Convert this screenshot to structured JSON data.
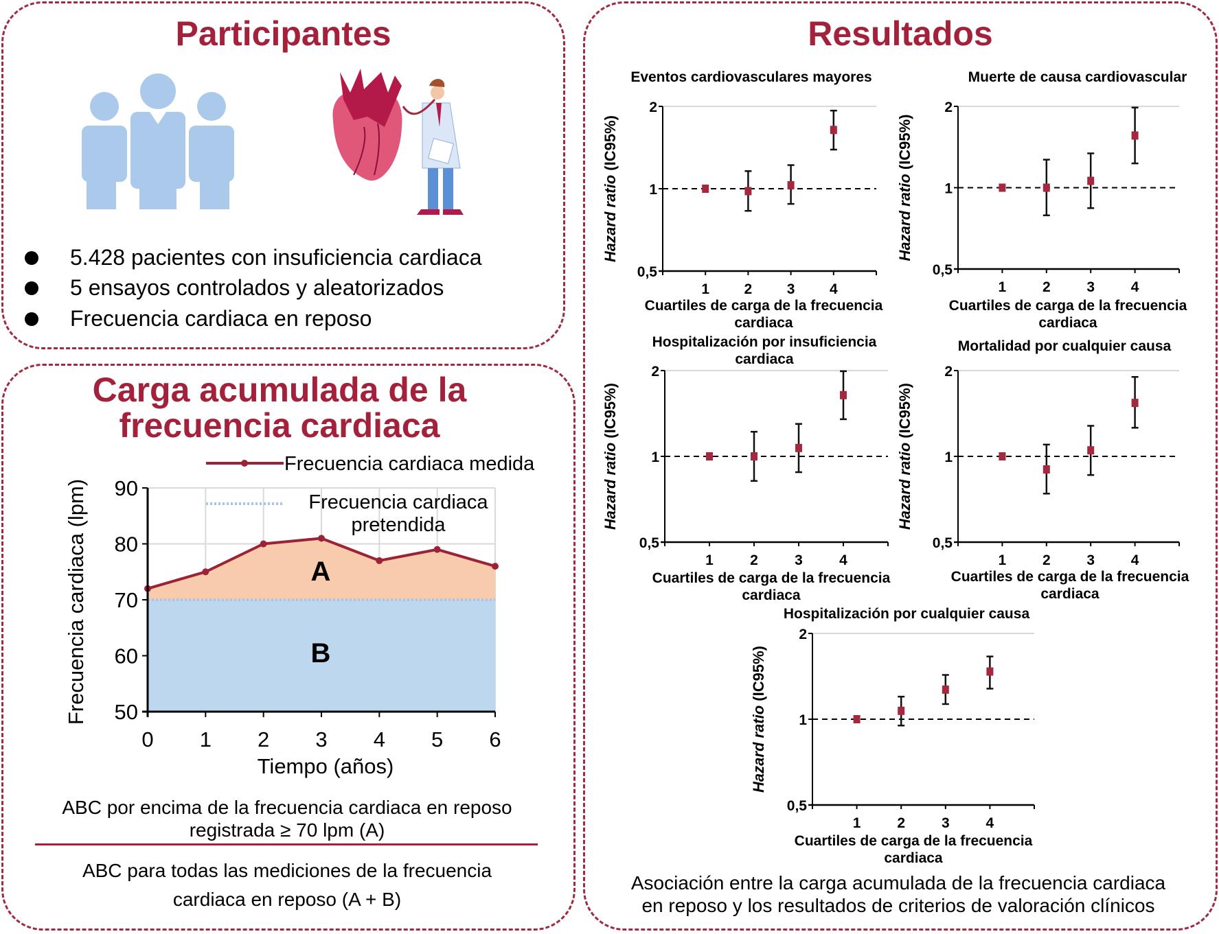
{
  "participants": {
    "title": "Participantes",
    "bullets": [
      "5.428 pacientes con insuficiencia cardiaca",
      "5 ensayos controlados y aleatorizados",
      "Frecuencia cardiaca en reposo"
    ],
    "icons": [
      "people-group-icon",
      "heart-doctor-illustration"
    ]
  },
  "burden": {
    "title": "Carga acumulada de la\nfrecuencia cardiaca",
    "note_a": "ABC por encima de la frecuencia cardiaca en reposo\nregistrada ≥ 70 lpm (A)",
    "note_ab": "ABC para todas las mediciones de la frecuencia\ncardiaca en reposo (A + B)"
  },
  "results": {
    "title": "Resultados",
    "caption": "Asociación entre la carga acumulada de la frecuencia cardiaca\nen reposo y los resultados de criterios de valoración clínicos"
  },
  "colors": {
    "accent": "#a3213a",
    "marker": "#a5283f",
    "area_a": "#f8cbad",
    "area_b": "#bdd7ee",
    "target_line": "#a9c4e8",
    "people": "#abc9ea"
  },
  "chart_data": [
    {
      "type": "area",
      "x": [
        0,
        1,
        2,
        3,
        4,
        5,
        6
      ],
      "series": [
        {
          "name": "Frecuencia cardiaca medida",
          "values": [
            72,
            75,
            80,
            81,
            77,
            79,
            76
          ]
        },
        {
          "name": "Frecuencia cardiaca pretendida",
          "values": [
            70,
            70,
            70,
            70,
            70,
            70,
            70
          ]
        }
      ],
      "legend_labels": [
        "Frecuencia cardiaca medida",
        "Frecuencia cardiaca\npretendida"
      ],
      "xlabel": "Tiempo (años)",
      "ylabel": "Frecuencia cardiaca (lpm)",
      "xlim": [
        0,
        6
      ],
      "ylim": [
        50,
        90
      ],
      "xticks": [
        "0",
        "1",
        "2",
        "3",
        "4",
        "5",
        "6"
      ],
      "yticks": [
        "50",
        "60",
        "70",
        "80",
        "90"
      ],
      "region_labels": [
        "A",
        "B"
      ],
      "grid": true,
      "legend": "top-right"
    },
    {
      "type": "scatter",
      "title": "Eventos cardiovasculares mayores",
      "categories": [
        "1",
        "2",
        "3",
        "4"
      ],
      "hr": [
        1.0,
        0.98,
        1.03,
        1.64
      ],
      "ci_low": [
        1.0,
        0.83,
        0.88,
        1.39
      ],
      "ci_high": [
        1.0,
        1.16,
        1.22,
        1.93
      ],
      "yscale": "log",
      "ylim": [
        0.5,
        2
      ],
      "reference_line": 1,
      "yticks": [
        0.5,
        1,
        2
      ],
      "ytick_labels": [
        "0,5",
        "1",
        "2"
      ],
      "xlabel": "Cuartiles de carga de la frecuencia\ncardiaca",
      "ylabel": [
        "Hazard ratio",
        " (IC95%)"
      ]
    },
    {
      "type": "scatter",
      "title": "Muerte de causa cardiovascular",
      "categories": [
        "1",
        "2",
        "3",
        "4"
      ],
      "hr": [
        1.0,
        1.0,
        1.06,
        1.56
      ],
      "ci_low": [
        1.0,
        0.79,
        0.84,
        1.23
      ],
      "ci_high": [
        1.0,
        1.27,
        1.34,
        1.98
      ],
      "yscale": "log",
      "ylim": [
        0.5,
        2
      ],
      "reference_line": 1,
      "yticks": [
        0.5,
        1,
        2
      ],
      "ytick_labels": [
        "0,5",
        "1",
        "2"
      ],
      "xlabel": "Cuartiles de carga de la frecuencia\ncardiaca",
      "ylabel": [
        "Hazard ratio",
        " (IC95%)"
      ]
    },
    {
      "type": "scatter",
      "title": "Hospitalización por insuficiencia\ncardiaca",
      "categories": [
        "1",
        "2",
        "3",
        "4"
      ],
      "hr": [
        1.0,
        1.0,
        1.07,
        1.64
      ],
      "ci_low": [
        1.0,
        0.82,
        0.88,
        1.35
      ],
      "ci_high": [
        1.0,
        1.22,
        1.3,
        1.99
      ],
      "yscale": "log",
      "ylim": [
        0.5,
        2
      ],
      "reference_line": 1,
      "yticks": [
        0.5,
        1,
        2
      ],
      "ytick_labels": [
        "0,5",
        "1",
        "2"
      ],
      "xlabel": "Cuartiles de carga de la frecuencia\ncardiaca",
      "ylabel": [
        "Hazard ratio",
        " (IC95%)"
      ]
    },
    {
      "type": "scatter",
      "title": "Mortalidad por cualquier causa",
      "categories": [
        "1",
        "2",
        "3",
        "4"
      ],
      "hr": [
        1.0,
        0.9,
        1.05,
        1.54
      ],
      "ci_low": [
        1.0,
        0.74,
        0.86,
        1.26
      ],
      "ci_high": [
        1.0,
        1.1,
        1.28,
        1.9
      ],
      "yscale": "log",
      "ylim": [
        0.5,
        2
      ],
      "reference_line": 1,
      "yticks": [
        0.5,
        1,
        2
      ],
      "ytick_labels": [
        "0,5",
        "1",
        "2"
      ],
      "xlabel": "Cuartiles de carga de la frecuencia\ncardiaca",
      "ylabel": [
        "Hazard ratio",
        " (IC95%)"
      ]
    },
    {
      "type": "scatter",
      "title": "Hospitalización por cualquier causa",
      "categories": [
        "1",
        "2",
        "3",
        "4"
      ],
      "hr": [
        1.0,
        1.07,
        1.27,
        1.47
      ],
      "ci_low": [
        1.0,
        0.95,
        1.13,
        1.28
      ],
      "ci_high": [
        1.0,
        1.2,
        1.43,
        1.66
      ],
      "yscale": "log",
      "ylim": [
        0.5,
        2
      ],
      "reference_line": 1,
      "yticks": [
        0.5,
        1,
        2
      ],
      "ytick_labels": [
        "0,5",
        "1",
        "2"
      ],
      "xlabel": "Cuartiles de carga de la frecuencia\ncardiaca",
      "ylabel": [
        "Hazard ratio",
        " (IC95%)"
      ]
    }
  ]
}
